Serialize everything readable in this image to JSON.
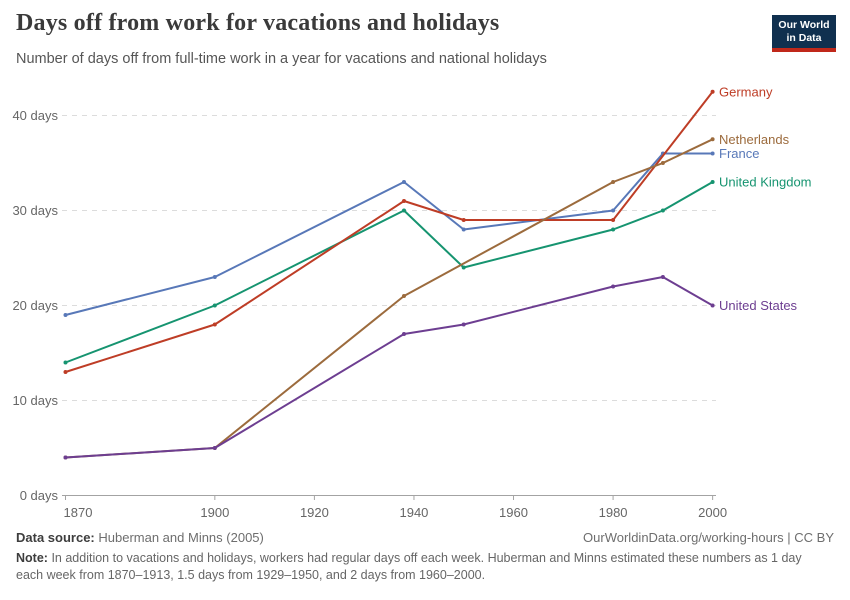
{
  "header": {
    "title": "Days off from work for vacations and holidays",
    "subtitle": "Number of days off from full-time work in a year for vacations and national holidays",
    "logo": {
      "line1": "Our World",
      "line2": "in Data"
    }
  },
  "chart_data": {
    "type": "line",
    "title": "Days off from work for vacations and holidays",
    "xlabel": "",
    "ylabel": "days",
    "xlim": [
      1870,
      2000
    ],
    "ylim": [
      0,
      43
    ],
    "x_ticks": [
      1870,
      1900,
      1920,
      1940,
      1960,
      1980,
      2000
    ],
    "y_ticks": [
      0,
      10,
      20,
      30,
      40
    ],
    "y_tick_suffix": " days",
    "grid": "horizontal-dashed",
    "legend_position": "right-of-line-ends",
    "colors": {
      "axis": "#a3a3a3",
      "grid": "#dcdcdc",
      "tick_label": "#666666"
    },
    "series": [
      {
        "name": "France",
        "color": "#5878B8",
        "x": [
          1870,
          1900,
          1938,
          1950,
          1980,
          1990,
          2000
        ],
        "values": [
          19,
          23,
          33,
          28,
          30,
          36,
          36
        ]
      },
      {
        "name": "United Kingdom",
        "color": "#169470",
        "x": [
          1870,
          1900,
          1938,
          1950,
          1980,
          1990,
          2000
        ],
        "values": [
          14,
          20,
          30,
          24,
          28,
          30,
          33
        ]
      },
      {
        "name": "Germany",
        "color": "#BE3D26",
        "x": [
          1870,
          1900,
          1938,
          1950,
          1980,
          2000
        ],
        "values": [
          13,
          18,
          31,
          29,
          29,
          42.5
        ]
      },
      {
        "name": "Netherlands",
        "color": "#9C6B3D",
        "x": [
          1870,
          1900,
          1938,
          1980,
          1990,
          2000
        ],
        "values": [
          4,
          5,
          21,
          33,
          35,
          37.5
        ]
      },
      {
        "name": "United States",
        "color": "#6D3E91",
        "x": [
          1870,
          1900,
          1938,
          1950,
          1980,
          1990,
          2000
        ],
        "values": [
          4,
          5,
          17,
          18,
          22,
          23,
          20
        ]
      }
    ]
  },
  "footer": {
    "source_label": "Data source:",
    "source_value": "Huberman and Minns (2005)",
    "citation": "OurWorldinData.org/working-hours | CC BY",
    "note_label": "Note:",
    "note_text": "In addition to vacations and holidays, workers had regular days off each week. Huberman and Minns estimated these numbers as 1 day each week from 1870–1913, 1.5 days from 1929–1950, and 2 days from 1960–2000."
  }
}
